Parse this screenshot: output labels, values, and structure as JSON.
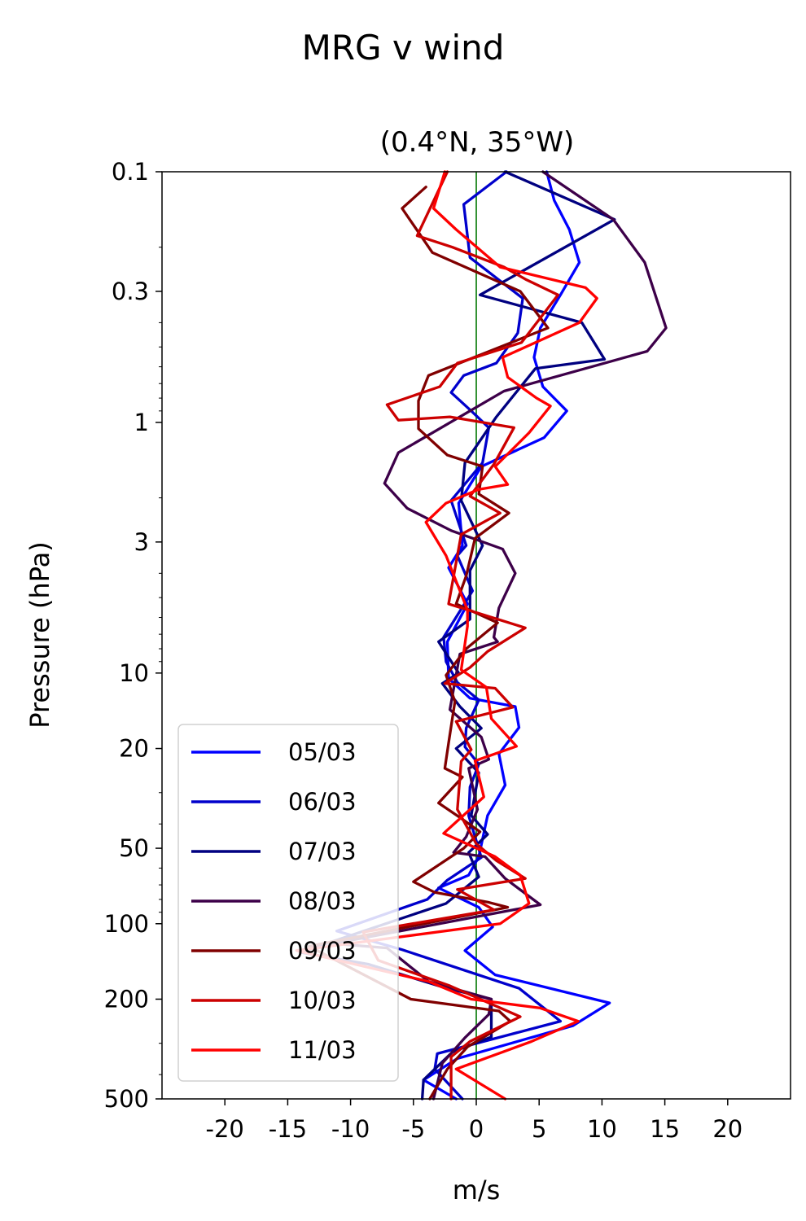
{
  "chart_data": {
    "type": "line",
    "title": "MRG v wind",
    "subtitle": "(0.4°N, 35°W)",
    "xlabel": "m/s",
    "ylabel": "Pressure (hPa)",
    "xlim": [
      -25,
      25
    ],
    "ylim": [
      500,
      0.1
    ],
    "yscale": "log",
    "grid": false,
    "legend_position": "lower-left",
    "xticks": [
      -20,
      -15,
      -10,
      -5,
      0,
      5,
      10,
      15,
      20
    ],
    "xtick_labels": [
      "-20",
      "-15",
      "-10",
      "-5",
      "0",
      "5",
      "10",
      "15",
      "20"
    ],
    "yticks": [
      0.1,
      0.3,
      1,
      3,
      10,
      20,
      50,
      100,
      200,
      500
    ],
    "ytick_labels": [
      "0.1",
      "0.3",
      "1",
      "3",
      "10",
      "20",
      "50",
      "100",
      "200",
      "500"
    ],
    "reference_line": {
      "x": 0,
      "color": "#007700"
    },
    "series": [
      {
        "name": "05/03",
        "color": "#0000ff",
        "points": [
          [
            5.6,
            0.1
          ],
          [
            6.2,
            0.13
          ],
          [
            7.4,
            0.17
          ],
          [
            8.2,
            0.23
          ],
          [
            6.7,
            0.31
          ],
          [
            5.1,
            0.42
          ],
          [
            4.6,
            0.55
          ],
          [
            5.3,
            0.72
          ],
          [
            7.2,
            0.9
          ],
          [
            5.4,
            1.15
          ],
          [
            0.4,
            1.5
          ],
          [
            -1.4,
            2.1
          ],
          [
            -1.1,
            3.1
          ],
          [
            -2.2,
            3.8
          ],
          [
            -0.7,
            5.3
          ],
          [
            -2.3,
            7.5
          ],
          [
            -2.2,
            10.5
          ],
          [
            -0.5,
            12.6
          ],
          [
            3.1,
            13.6
          ],
          [
            3.4,
            16.5
          ],
          [
            1.8,
            21
          ],
          [
            2.3,
            28
          ],
          [
            0.9,
            37
          ],
          [
            0.2,
            54
          ],
          [
            -0.6,
            64
          ],
          [
            -3,
            72
          ],
          [
            0.2,
            86
          ],
          [
            1.3,
            103
          ],
          [
            -0.9,
            128
          ],
          [
            1.5,
            160
          ],
          [
            10.6,
            207
          ],
          [
            7.7,
            255
          ],
          [
            -1.5,
            345
          ],
          [
            -4.2,
            420
          ],
          [
            -1.6,
            500
          ]
        ]
      },
      {
        "name": "06/03",
        "color": "#0000cc",
        "points": [
          [
            2.4,
            0.1
          ],
          [
            -1,
            0.135
          ],
          [
            -0.5,
            0.22
          ],
          [
            3.7,
            0.32
          ],
          [
            3.3,
            0.44
          ],
          [
            1.6,
            0.58
          ],
          [
            -1,
            0.65
          ],
          [
            -2,
            0.76
          ],
          [
            -0.4,
            0.9
          ],
          [
            1,
            1.05
          ],
          [
            0.5,
            1.45
          ],
          [
            -2,
            2.05
          ],
          [
            -0.8,
            3.1
          ],
          [
            -1.5,
            3.4
          ],
          [
            -0.3,
            4.7
          ],
          [
            -2.6,
            7.2
          ],
          [
            -2.4,
            9
          ],
          [
            -1.5,
            10.9
          ],
          [
            0.2,
            12.8
          ],
          [
            -0.8,
            16.6
          ],
          [
            -0.9,
            19.7
          ],
          [
            0.2,
            23.1
          ],
          [
            -0.5,
            28.5
          ],
          [
            -0.6,
            37.1
          ],
          [
            0.4,
            54.4
          ],
          [
            -2.3,
            67
          ],
          [
            -3.9,
            80
          ],
          [
            -11.1,
            107
          ],
          [
            -5.9,
            127
          ],
          [
            3.4,
            181
          ],
          [
            6.7,
            245
          ],
          [
            -3.1,
            330
          ],
          [
            -3.3,
            380
          ],
          [
            -1.1,
            500
          ]
        ]
      },
      {
        "name": "07/03",
        "color": "#000080",
        "points": [
          [
            2.3,
            0.1
          ],
          [
            11,
            0.155
          ],
          [
            0.3,
            0.31
          ],
          [
            8.4,
            0.4
          ],
          [
            10.2,
            0.56
          ],
          [
            4.7,
            0.61
          ],
          [
            1.6,
            0.95
          ],
          [
            -0.9,
            1.45
          ],
          [
            -1.2,
            2.05
          ],
          [
            0.5,
            3.1
          ],
          [
            -0.5,
            3.9
          ],
          [
            -0.5,
            6.1
          ],
          [
            -3,
            7.5
          ],
          [
            -1.4,
            10
          ],
          [
            -2.7,
            11
          ],
          [
            -1.3,
            13.6
          ],
          [
            0.4,
            16.6
          ],
          [
            -1.6,
            20
          ],
          [
            0.2,
            25
          ],
          [
            -0.4,
            37
          ],
          [
            0.9,
            44
          ],
          [
            -0.6,
            52
          ],
          [
            0.2,
            65
          ],
          [
            -2.4,
            83
          ],
          [
            -14,
            130
          ],
          [
            -8.6,
            145
          ],
          [
            -2.5,
            180
          ],
          [
            1.2,
            200
          ],
          [
            1.2,
            283
          ],
          [
            -1.9,
            325
          ],
          [
            -4.2,
            420
          ],
          [
            -4.3,
            500
          ]
        ]
      },
      {
        "name": "08/03",
        "color": "#3d0049",
        "points": [
          [
            5.3,
            0.1
          ],
          [
            10.9,
            0.155
          ],
          [
            13.4,
            0.23
          ],
          [
            15.1,
            0.42
          ],
          [
            13.6,
            0.52
          ],
          [
            2.2,
            0.75
          ],
          [
            -6.2,
            1.32
          ],
          [
            -7.3,
            1.75
          ],
          [
            -5.5,
            2.2
          ],
          [
            -2,
            2.7
          ],
          [
            2.1,
            3.2
          ],
          [
            3.1,
            4
          ],
          [
            1.8,
            5.5
          ],
          [
            1.4,
            7.2
          ],
          [
            1.7,
            7.5
          ],
          [
            -1.3,
            8.4
          ],
          [
            -2.1,
            14
          ],
          [
            0.4,
            18
          ],
          [
            1,
            22.1
          ],
          [
            -0.6,
            24
          ],
          [
            0.1,
            35
          ],
          [
            -0.8,
            45
          ],
          [
            -1.8,
            52
          ],
          [
            0.7,
            54
          ],
          [
            2.3,
            66
          ],
          [
            5.1,
            84
          ],
          [
            -11.4,
            120
          ],
          [
            -7.1,
            125
          ],
          [
            -3.8,
            170
          ],
          [
            1.2,
            200
          ],
          [
            1,
            230
          ],
          [
            -0.9,
            285
          ],
          [
            -2.7,
            360
          ],
          [
            -3.4,
            500
          ]
        ]
      },
      {
        "name": "09/03",
        "color": "#800000",
        "points": [
          [
            -4,
            0.115
          ],
          [
            -5.9,
            0.14
          ],
          [
            -3.5,
            0.21
          ],
          [
            3.5,
            0.3
          ],
          [
            5.7,
            0.42
          ],
          [
            -3.8,
            0.65
          ],
          [
            -4.6,
            0.82
          ],
          [
            -4.6,
            1.06
          ],
          [
            -2.3,
            1.35
          ],
          [
            0.5,
            1.5
          ],
          [
            0.2,
            1.93
          ],
          [
            2.6,
            2.3
          ],
          [
            -0.1,
            2.9
          ],
          [
            -0.8,
            4.1
          ],
          [
            -1.6,
            5.3
          ],
          [
            1.7,
            6.3
          ],
          [
            -0.8,
            8
          ],
          [
            -2.4,
            10.2
          ],
          [
            -1.7,
            13
          ],
          [
            -2.2,
            19
          ],
          [
            -2.5,
            24
          ],
          [
            -1.1,
            26
          ],
          [
            -3,
            33
          ],
          [
            -1.2,
            38
          ],
          [
            0.3,
            43
          ],
          [
            -1,
            50
          ],
          [
            -5,
            68
          ],
          [
            -3.3,
            75
          ],
          [
            0.9,
            82
          ],
          [
            2.5,
            86
          ],
          [
            -13.3,
            123
          ],
          [
            -5.2,
            200
          ],
          [
            1.8,
            223
          ],
          [
            2.7,
            245
          ],
          [
            -0.7,
            310
          ],
          [
            -2.3,
            380
          ],
          [
            -3.7,
            500
          ]
        ]
      },
      {
        "name": "10/03",
        "color": "#cc0000",
        "points": [
          [
            -2.3,
            0.1
          ],
          [
            -4.7,
            0.18
          ],
          [
            -1.9,
            0.2
          ],
          [
            2.2,
            0.24
          ],
          [
            4,
            0.27
          ],
          [
            6.5,
            0.31
          ],
          [
            3.6,
            0.48
          ],
          [
            -1.5,
            0.58
          ],
          [
            -2.9,
            0.72
          ],
          [
            -7.1,
            0.85
          ],
          [
            -6.2,
            0.98
          ],
          [
            -2.1,
            0.95
          ],
          [
            3,
            1.05
          ],
          [
            1.4,
            1.47
          ],
          [
            -0.5,
            1.97
          ],
          [
            1.9,
            2.3
          ],
          [
            -1.2,
            2.8
          ],
          [
            -2.2,
            5.3
          ],
          [
            3.9,
            6.6
          ],
          [
            0.9,
            8.2
          ],
          [
            -0.5,
            9.5
          ],
          [
            -2.5,
            11
          ],
          [
            1.5,
            11.5
          ],
          [
            2.9,
            13.7
          ],
          [
            -1.6,
            15.6
          ],
          [
            -0.4,
            20.2
          ],
          [
            -1.2,
            22.5
          ],
          [
            -1.5,
            35
          ],
          [
            0,
            48
          ],
          [
            1.6,
            56
          ],
          [
            3.9,
            66
          ],
          [
            -1.5,
            73
          ],
          [
            1.4,
            88
          ],
          [
            -9,
            108
          ],
          [
            -7.8,
            140
          ],
          [
            -2.1,
            177
          ],
          [
            3.5,
            235
          ],
          [
            -0.5,
            295
          ],
          [
            -2,
            340
          ],
          [
            -2,
            500
          ]
        ]
      },
      {
        "name": "11/03",
        "color": "#ff0000",
        "points": [
          [
            -2.5,
            0.1
          ],
          [
            -3.4,
            0.14
          ],
          [
            -1.6,
            0.17
          ],
          [
            1.9,
            0.24
          ],
          [
            8.7,
            0.29
          ],
          [
            9.6,
            0.32
          ],
          [
            8.2,
            0.4
          ],
          [
            2.1,
            0.55
          ],
          [
            2.5,
            0.66
          ],
          [
            4.8,
            0.8
          ],
          [
            5.9,
            0.86
          ],
          [
            4.2,
            1.1
          ],
          [
            1.5,
            1.5
          ],
          [
            2.5,
            1.77
          ],
          [
            0.2,
            1.85
          ],
          [
            -2.4,
            2.1
          ],
          [
            -4,
            2.5
          ],
          [
            -2.4,
            3.4
          ],
          [
            -0.7,
            5.6
          ],
          [
            -0.7,
            6.5
          ],
          [
            -1.2,
            9.7
          ],
          [
            0.8,
            11.4
          ],
          [
            1.2,
            15.2
          ],
          [
            3.2,
            19.6
          ],
          [
            -0.1,
            22.4
          ],
          [
            0.6,
            31.2
          ],
          [
            -2.6,
            43.6
          ],
          [
            1.5,
            54
          ],
          [
            3.5,
            64
          ],
          [
            4.2,
            83
          ],
          [
            1.9,
            100
          ],
          [
            -14.3,
            128
          ],
          [
            -3.8,
            170
          ],
          [
            -0.4,
            200
          ],
          [
            5.1,
            217
          ],
          [
            8.1,
            245
          ],
          [
            4.4,
            295
          ],
          [
            -1.6,
            380
          ],
          [
            2.3,
            500
          ]
        ]
      }
    ]
  }
}
